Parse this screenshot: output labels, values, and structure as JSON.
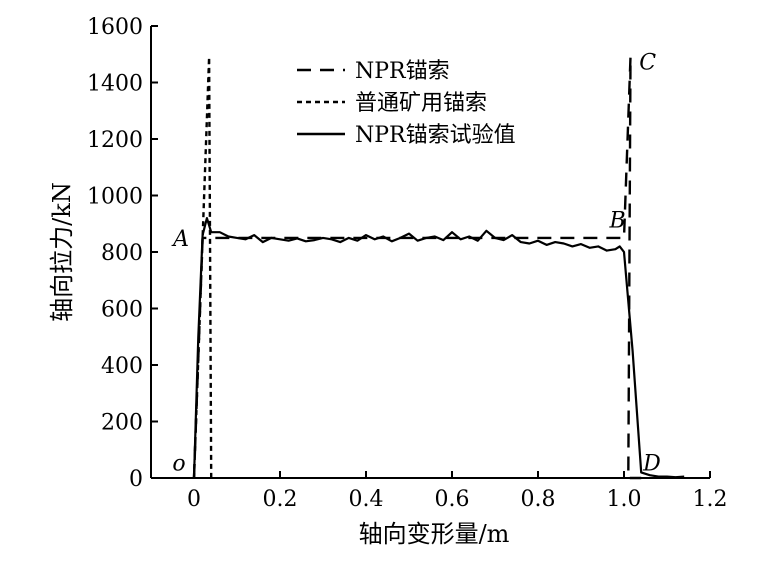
{
  "chart_data": {
    "type": "line",
    "xlabel": "轴向变形量/m",
    "ylabel": "轴向拉力/kN",
    "xlim": [
      -0.1,
      1.2
    ],
    "ylim": [
      0,
      1600
    ],
    "xticks": [
      "0",
      "0.2",
      "0.4",
      "0.6",
      "0.8",
      "1.0",
      "1.2"
    ],
    "xtick_values": [
      0,
      0.2,
      0.4,
      0.6,
      0.8,
      1.0,
      1.2
    ],
    "yticks": [
      "0",
      "200",
      "400",
      "600",
      "800",
      "1000",
      "1200",
      "1400",
      "1600"
    ],
    "ytick_values": [
      0,
      200,
      400,
      600,
      800,
      1000,
      1200,
      1400,
      1600
    ],
    "grid": false,
    "legend_position": "top-center",
    "series": [
      {
        "name": "NPR锚索",
        "style": "dashed",
        "x": [
          0,
          0.02,
          1.0,
          1.015,
          1.01,
          1.04
        ],
        "y": [
          0,
          850,
          850,
          1490,
          0,
          0
        ]
      },
      {
        "name": "普通矿用锚索",
        "style": "dotted",
        "x": [
          0,
          0.035,
          0.04
        ],
        "y": [
          0,
          1490,
          0
        ]
      },
      {
        "name": "NPR锚索试验值",
        "style": "solid",
        "x": [
          0,
          0.01,
          0.02,
          0.03,
          0.04,
          0.06,
          0.08,
          0.1,
          0.12,
          0.14,
          0.16,
          0.18,
          0.2,
          0.22,
          0.24,
          0.26,
          0.28,
          0.3,
          0.32,
          0.34,
          0.36,
          0.38,
          0.4,
          0.42,
          0.44,
          0.46,
          0.48,
          0.5,
          0.52,
          0.54,
          0.56,
          0.58,
          0.6,
          0.62,
          0.64,
          0.66,
          0.68,
          0.7,
          0.72,
          0.74,
          0.76,
          0.78,
          0.8,
          0.82,
          0.84,
          0.86,
          0.88,
          0.9,
          0.92,
          0.94,
          0.96,
          0.98,
          0.99,
          1.0,
          1.02,
          1.04,
          1.06,
          1.08,
          1.1,
          1.12,
          1.14
        ],
        "y": [
          0,
          500,
          860,
          920,
          870,
          870,
          855,
          850,
          845,
          860,
          835,
          850,
          845,
          840,
          848,
          838,
          842,
          850,
          845,
          835,
          850,
          840,
          860,
          845,
          855,
          838,
          850,
          865,
          840,
          850,
          855,
          842,
          870,
          845,
          855,
          840,
          875,
          850,
          842,
          860,
          835,
          830,
          840,
          825,
          835,
          830,
          820,
          828,
          815,
          820,
          805,
          810,
          820,
          800,
          450,
          20,
          10,
          5,
          5,
          3,
          5
        ]
      }
    ],
    "annotations": [
      {
        "text": "A",
        "x": -0.03,
        "y": 850
      },
      {
        "text": "B",
        "x": 0.985,
        "y": 915
      },
      {
        "text": "C",
        "x": 1.055,
        "y": 1475
      },
      {
        "text": "D",
        "x": 1.065,
        "y": 55
      },
      {
        "text": "o",
        "x": -0.035,
        "y": 55
      }
    ]
  }
}
